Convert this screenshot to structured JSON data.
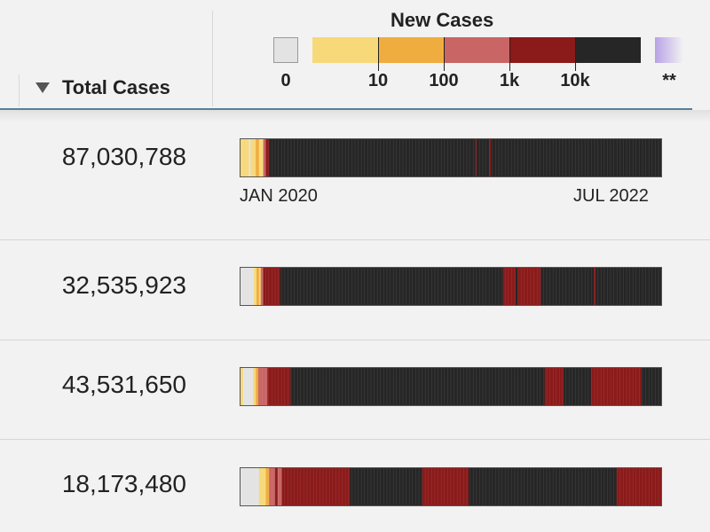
{
  "header": {
    "sort_label": "Total Cases",
    "legend_title": "New Cases",
    "legend_labels": [
      "0",
      "10",
      "100",
      "1k",
      "10k",
      "**"
    ]
  },
  "legend_colors": {
    "zero": "#e3e3e3",
    "lt10": "#f7d97a",
    "lt100": "#f0ad3f",
    "lt1k": "#c96565",
    "lt10k": "#8b1a1a",
    "gte10k": "#262626",
    "special": "#b8a2e6"
  },
  "axis": {
    "start": "JAN 2020",
    "end": "JUL 2022"
  },
  "chart_data": {
    "type": "heatmap",
    "title": "New Cases",
    "columns": [
      "Total Cases",
      "New Cases"
    ],
    "bins": [
      "0",
      "10",
      "100",
      "1k",
      "10k",
      "**"
    ],
    "x_range": [
      "JAN 2020",
      "JUL 2022"
    ],
    "rows": [
      {
        "total_cases": "87,030,788",
        "total_value": 87030788,
        "segments": [
          [
            "lt10",
            0.02
          ],
          [
            "zero",
            0.004
          ],
          [
            "lt10",
            0.012
          ],
          [
            "lt100",
            0.008
          ],
          [
            "lt10",
            0.01
          ],
          [
            "lt1k",
            0.006
          ],
          [
            "lt10k",
            0.008
          ],
          [
            "gte10k",
            0.49
          ],
          [
            "lt10k",
            0.003
          ],
          [
            "gte10k",
            0.03
          ],
          [
            "lt10k",
            0.004
          ],
          [
            "gte10k",
            0.405
          ]
        ]
      },
      {
        "total_cases": "32,535,923",
        "total_value": 32535923,
        "segments": [
          [
            "zero",
            0.032
          ],
          [
            "lt10",
            0.006
          ],
          [
            "lt100",
            0.006
          ],
          [
            "lt10",
            0.004
          ],
          [
            "lt1k",
            0.006
          ],
          [
            "lt10k",
            0.04
          ],
          [
            "gte10k",
            0.53
          ],
          [
            "lt10k",
            0.03
          ],
          [
            "gte10k",
            0.005
          ],
          [
            "lt10k",
            0.055
          ],
          [
            "gte10k",
            0.126
          ],
          [
            "lt10k",
            0.004
          ],
          [
            "gte10k",
            0.156
          ]
        ]
      },
      {
        "total_cases": "43,531,650",
        "total_value": 43531650,
        "segments": [
          [
            "lt10",
            0.006
          ],
          [
            "zero",
            0.024
          ],
          [
            "lt10",
            0.006
          ],
          [
            "lt100",
            0.006
          ],
          [
            "lt1k",
            0.022
          ],
          [
            "lt10k",
            0.055
          ],
          [
            "gte10k",
            0.604
          ],
          [
            "lt10k",
            0.045
          ],
          [
            "gte10k",
            0.065
          ],
          [
            "lt10k",
            0.12
          ],
          [
            "gte10k",
            0.047
          ]
        ]
      },
      {
        "total_cases": "18,173,480",
        "total_value": 18173480,
        "segments": [
          [
            "zero",
            0.044
          ],
          [
            "lt10",
            0.016
          ],
          [
            "lt100",
            0.008
          ],
          [
            "lt1k",
            0.014
          ],
          [
            "lt10k",
            0.006
          ],
          [
            "lt1k",
            0.01
          ],
          [
            "lt10k",
            0.162
          ],
          [
            "gte10k",
            0.172
          ],
          [
            "lt10k",
            0.11
          ],
          [
            "gte10k",
            0.352
          ],
          [
            "lt10k",
            0.106
          ]
        ]
      }
    ]
  }
}
